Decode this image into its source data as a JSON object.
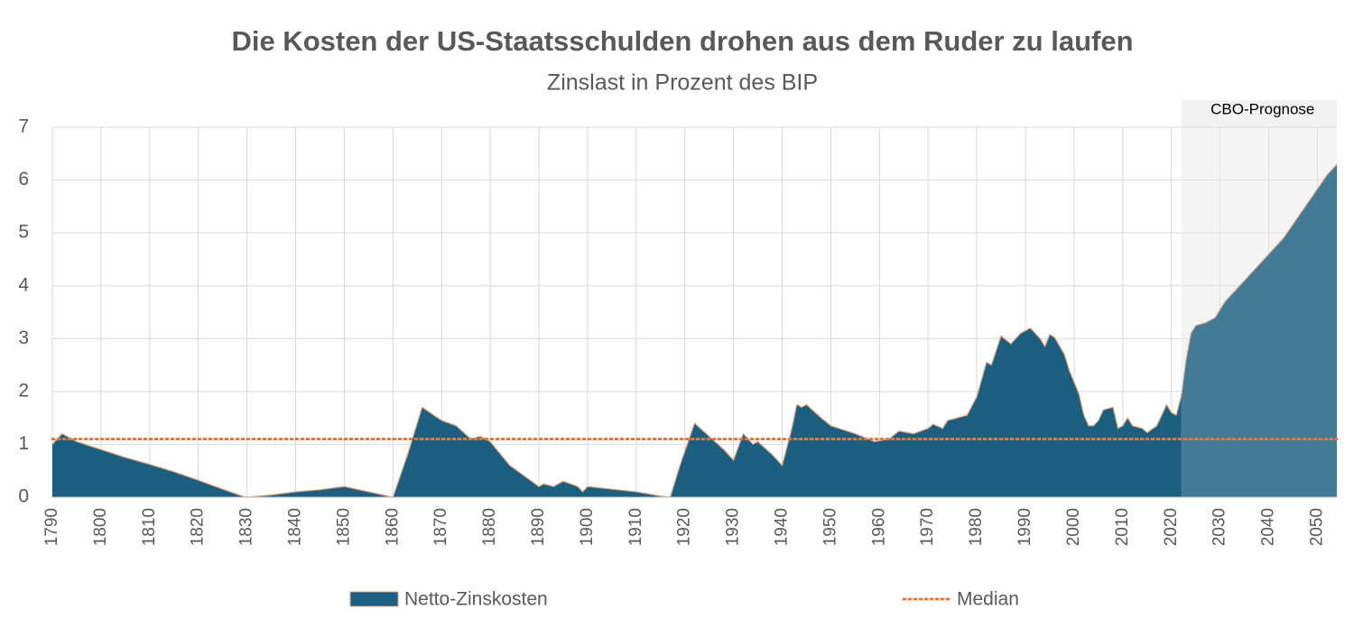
{
  "chart_data": {
    "type": "area",
    "title": "Die Kosten der US-Staatsschulden drohen aus dem Ruder zu laufen",
    "subtitle": "Zinslast in Prozent des BIP",
    "x": [
      1790,
      1792,
      1795,
      1800,
      1805,
      1810,
      1815,
      1820,
      1825,
      1829,
      1830,
      1835,
      1840,
      1845,
      1850,
      1855,
      1860,
      1863,
      1866,
      1870,
      1873,
      1876,
      1878,
      1880,
      1884,
      1887,
      1890,
      1891,
      1893,
      1895,
      1898,
      1899,
      1900,
      1905,
      1910,
      1915,
      1917,
      1919,
      1922,
      1925,
      1928,
      1930,
      1932,
      1934,
      1935,
      1938,
      1940,
      1942,
      1943,
      1944,
      1945,
      1948,
      1950,
      1955,
      1959,
      1962,
      1964,
      1967,
      1970,
      1971,
      1973,
      1974,
      1976,
      1978,
      1980,
      1982,
      1983,
      1985,
      1987,
      1989,
      1991,
      1993,
      1994,
      1995,
      1996,
      1998,
      1999,
      2001,
      2002,
      2003,
      2004,
      2005,
      2006,
      2008,
      2009,
      2010,
      2011,
      2012,
      2014,
      2015,
      2017,
      2019,
      2020,
      2021,
      2022,
      2023,
      2024,
      2025,
      2027,
      2029,
      2031,
      2034,
      2037,
      2040,
      2043,
      2046,
      2049,
      2052,
      2054
    ],
    "series": [
      {
        "name": "Netto-Zinskosten",
        "color": "#1a5e80",
        "values": [
          1.0,
          1.2,
          1.05,
          0.9,
          0.75,
          0.62,
          0.48,
          0.32,
          0.15,
          0.02,
          0.0,
          0.04,
          0.1,
          0.14,
          0.2,
          0.1,
          0.0,
          0.8,
          1.7,
          1.45,
          1.35,
          1.1,
          1.15,
          1.05,
          0.6,
          0.4,
          0.2,
          0.25,
          0.2,
          0.3,
          0.2,
          0.1,
          0.2,
          0.15,
          0.1,
          0.02,
          0.0,
          0.6,
          1.4,
          1.15,
          0.9,
          0.7,
          1.2,
          1.0,
          1.05,
          0.8,
          0.6,
          1.3,
          1.75,
          1.7,
          1.75,
          1.5,
          1.35,
          1.2,
          1.05,
          1.1,
          1.25,
          1.2,
          1.3,
          1.38,
          1.3,
          1.45,
          1.5,
          1.55,
          1.9,
          2.55,
          2.5,
          3.05,
          2.9,
          3.1,
          3.2,
          3.0,
          2.85,
          3.08,
          3.02,
          2.7,
          2.4,
          1.95,
          1.55,
          1.35,
          1.35,
          1.45,
          1.65,
          1.7,
          1.3,
          1.35,
          1.5,
          1.35,
          1.3,
          1.22,
          1.35,
          1.75,
          1.6,
          1.55,
          1.9,
          2.6,
          3.1,
          3.25,
          3.3,
          3.4,
          3.7,
          4.0,
          4.3,
          4.6,
          4.9,
          5.3,
          5.7,
          6.1,
          6.3
        ]
      }
    ],
    "median": {
      "name": "Median",
      "value": 1.1,
      "color": "#e07a3a"
    },
    "forecast": {
      "label": "CBO-Prognose",
      "start": 2022
    },
    "xlim": [
      1790,
      2054
    ],
    "xticks": [
      1790,
      1800,
      1810,
      1820,
      1830,
      1840,
      1850,
      1860,
      1870,
      1880,
      1890,
      1900,
      1910,
      1920,
      1930,
      1940,
      1950,
      1960,
      1970,
      1980,
      1990,
      2000,
      2010,
      2020,
      2030,
      2040,
      2050
    ],
    "ylim": [
      0,
      7
    ],
    "yticks": [
      0,
      1,
      2,
      3,
      4,
      5,
      6,
      7
    ],
    "grid": true
  }
}
